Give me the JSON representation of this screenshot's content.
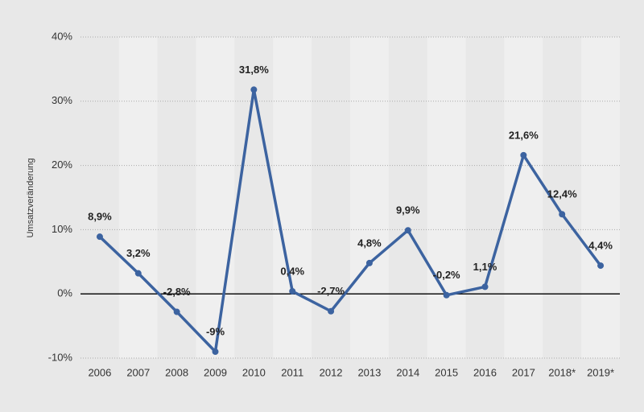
{
  "chart_data": {
    "type": "line",
    "y_label": "Umsatzveränderung",
    "categories": [
      "2006",
      "2007",
      "2008",
      "2009",
      "2010",
      "2011",
      "2012",
      "2013",
      "2014",
      "2015",
      "2016",
      "2017",
      "2018*",
      "2019*"
    ],
    "values": [
      8.9,
      3.2,
      -2.8,
      -9,
      31.8,
      0.4,
      -2.7,
      4.8,
      9.9,
      -0.2,
      1.1,
      21.6,
      12.4,
      4.4
    ],
    "value_labels": [
      "8,9%",
      "3,2%",
      "-2,8%",
      "-9%",
      "31,8%",
      "0,4%",
      "-2,7%",
      "4,8%",
      "9,9%",
      "-0,2%",
      "1,1%",
      "21,6%",
      "12,4%",
      "4,4%"
    ],
    "color": "#3c63a0",
    "ylim": [
      -10,
      40
    ],
    "yticks": [
      {
        "value": -10,
        "label": "-10%"
      },
      {
        "value": 0,
        "label": "0%"
      },
      {
        "value": 10,
        "label": "10%"
      },
      {
        "value": 20,
        "label": "20%"
      },
      {
        "value": 30,
        "label": "30%"
      },
      {
        "value": 40,
        "label": "40%"
      }
    ],
    "grid": true
  }
}
